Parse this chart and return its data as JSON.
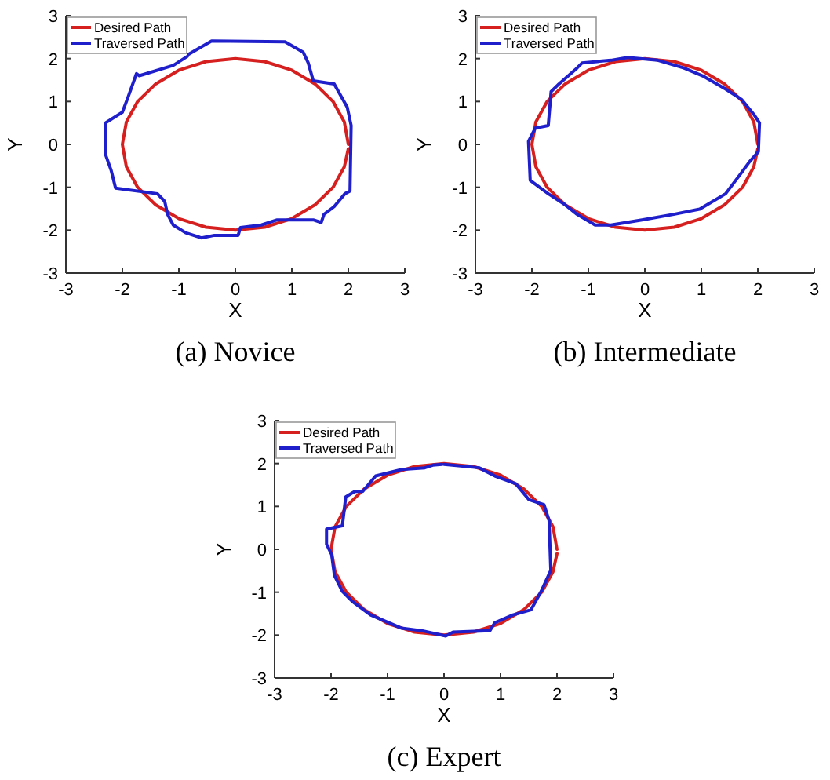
{
  "chart_data": [
    {
      "type": "line",
      "title": "(a) Novice",
      "xlabel": "X",
      "ylabel": "Y",
      "xlim": [
        -3,
        3
      ],
      "ylim": [
        -3,
        3
      ],
      "xticks": [
        -3,
        -2,
        -1,
        0,
        1,
        2,
        3
      ],
      "yticks": [
        -3,
        -2,
        -1,
        0,
        1,
        2,
        3
      ],
      "legend": "top left",
      "grid": false,
      "series": [
        {
          "name": "Desired Path",
          "color": "#d62020",
          "x": [
            2,
            1.93,
            1.73,
            1.41,
            1,
            0.52,
            0,
            -0.52,
            -1,
            -1.41,
            -1.73,
            -1.93,
            -2,
            -1.93,
            -1.73,
            -1.41,
            -1,
            -0.52,
            0,
            0.52,
            1,
            1.41,
            1.73,
            1.93,
            2
          ],
          "values": [
            0,
            0.52,
            1,
            1.41,
            1.73,
            1.93,
            2,
            1.93,
            1.73,
            1.41,
            1,
            0.52,
            0,
            -0.52,
            -1,
            -1.41,
            -1.73,
            -1.93,
            -2,
            -1.93,
            -1.73,
            -1.41,
            -1,
            -0.52,
            -0.1
          ]
        },
        {
          "name": "Traversed Path",
          "color": "#1f1fcc",
          "x": [
            -0.85,
            -1.1,
            -1.7,
            -1.75,
            -1.9,
            -2.0,
            -2.3,
            -2.3,
            -2.2,
            -2.12,
            -1.38,
            -1.25,
            -1.2,
            -1.1,
            -0.88,
            -0.6,
            -0.37,
            0.05,
            0.09,
            0.46,
            0.74,
            1.38,
            1.52,
            1.57,
            1.75,
            1.94,
            2.03,
            2.05,
            1.98,
            1.75,
            1.38,
            1.29,
            1.2,
            0.88,
            -0.42,
            -0.83
          ],
          "values": [
            2.05,
            1.84,
            1.6,
            1.65,
            1.1,
            0.75,
            0.5,
            -0.23,
            -0.6,
            -1.02,
            -1.15,
            -1.33,
            -1.63,
            -1.88,
            -2.06,
            -2.18,
            -2.12,
            -2.12,
            -1.94,
            -1.88,
            -1.76,
            -1.76,
            -1.82,
            -1.63,
            -1.45,
            -1.15,
            -1.09,
            0.44,
            0.87,
            1.41,
            1.48,
            1.9,
            2.15,
            2.39,
            2.41,
            2.1
          ]
        }
      ]
    },
    {
      "type": "line",
      "title": "(b) Intermediate",
      "xlabel": "X",
      "ylabel": "Y",
      "xlim": [
        -3,
        3
      ],
      "ylim": [
        -3,
        3
      ],
      "xticks": [
        -3,
        -2,
        -1,
        0,
        1,
        2,
        3
      ],
      "yticks": [
        -3,
        -2,
        -1,
        0,
        1,
        2,
        3
      ],
      "legend": "top left",
      "grid": false,
      "series": [
        {
          "name": "Desired Path",
          "color": "#d62020",
          "x": [
            2,
            1.93,
            1.73,
            1.41,
            1,
            0.52,
            0,
            -0.52,
            -1,
            -1.41,
            -1.73,
            -1.93,
            -2,
            -1.93,
            -1.73,
            -1.41,
            -1,
            -0.52,
            0,
            0.52,
            1,
            1.41,
            1.73,
            1.93,
            2
          ],
          "values": [
            0,
            0.52,
            1,
            1.41,
            1.73,
            1.93,
            2,
            1.93,
            1.73,
            1.41,
            1,
            0.52,
            0,
            -0.52,
            -1,
            -1.41,
            -1.73,
            -1.93,
            -2,
            -1.93,
            -1.73,
            -1.41,
            -1,
            -0.52,
            -0.1
          ]
        },
        {
          "name": "Traversed Path",
          "color": "#1f1fcc",
          "x": [
            -0.28,
            0.23,
            0.69,
            1.02,
            1.43,
            1.71,
            1.94,
            2.03,
            2.01,
            1.85,
            1.71,
            1.43,
            0.97,
            0.51,
            -0.05,
            -0.6,
            -0.88,
            -1.2,
            -1.43,
            -1.71,
            -2.03,
            -2.06,
            -1.94,
            -1.71,
            -1.66,
            -1.52,
            -1.2,
            -1.11,
            -0.6,
            -0.32
          ],
          "values": [
            2.02,
            1.96,
            1.78,
            1.6,
            1.29,
            1.05,
            0.68,
            0.5,
            -0.17,
            -0.41,
            -0.66,
            -1.15,
            -1.51,
            -1.63,
            -1.76,
            -1.88,
            -1.88,
            -1.63,
            -1.39,
            -1.15,
            -0.84,
            0.07,
            0.38,
            0.44,
            1.23,
            1.41,
            1.78,
            1.9,
            1.96,
            2.02
          ]
        }
      ]
    },
    {
      "type": "line",
      "title": "(c) Expert",
      "xlabel": "X",
      "ylabel": "Y",
      "xlim": [
        -3,
        3
      ],
      "ylim": [
        -3,
        3
      ],
      "xticks": [
        -3,
        -2,
        -1,
        0,
        1,
        2,
        3
      ],
      "yticks": [
        -3,
        -2,
        -1,
        0,
        1,
        2,
        3
      ],
      "legend": "top left",
      "grid": false,
      "series": [
        {
          "name": "Desired Path",
          "color": "#d62020",
          "x": [
            2,
            1.93,
            1.73,
            1.41,
            1,
            0.52,
            0,
            -0.52,
            -1,
            -1.41,
            -1.73,
            -1.93,
            -2,
            -1.93,
            -1.73,
            -1.41,
            -1,
            -0.52,
            0,
            0.52,
            1,
            1.41,
            1.73,
            1.93,
            2
          ],
          "values": [
            0,
            0.52,
            1,
            1.41,
            1.73,
            1.93,
            2,
            1.93,
            1.73,
            1.41,
            1,
            0.52,
            0,
            -0.52,
            -1,
            -1.41,
            -1.73,
            -1.93,
            -2,
            -1.93,
            -1.73,
            -1.41,
            -1,
            -0.52,
            -0.1
          ]
        },
        {
          "name": "Traversed Path",
          "color": "#1f1fcc",
          "x": [
            0,
            0.62,
            0.9,
            1.27,
            1.5,
            1.77,
            1.86,
            1.89,
            1.72,
            1.54,
            1.22,
            0.9,
            0.81,
            0.16,
            0.03,
            -0.38,
            -0.75,
            -1.3,
            -1.62,
            -1.8,
            -1.94,
            -1.99,
            -2.08,
            -2.08,
            -1.8,
            -1.74,
            -1.58,
            -1.44,
            -1.21,
            -0.75,
            -0.34,
            -0.2,
            -0.04
          ],
          "values": [
            1.98,
            1.9,
            1.71,
            1.53,
            1.16,
            1.04,
            0.67,
            -0.49,
            -0.98,
            -1.41,
            -1.53,
            -1.71,
            -1.9,
            -1.93,
            -2.02,
            -1.9,
            -1.84,
            -1.53,
            -1.22,
            -0.98,
            -0.61,
            -0.12,
            0.12,
            0.47,
            0.55,
            1.22,
            1.35,
            1.35,
            1.71,
            1.86,
            1.9,
            1.96,
            1.98
          ]
        }
      ]
    }
  ]
}
